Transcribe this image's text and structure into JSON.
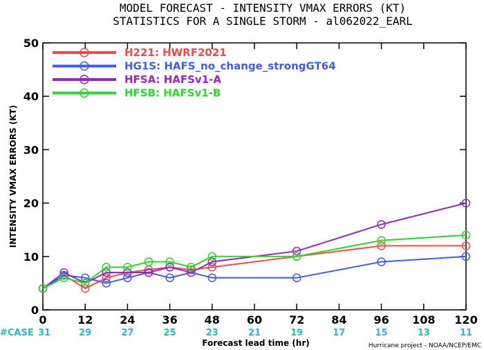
{
  "title_line1": "MODEL FORECAST - INTENSITY VMAX ERRORS (KT)",
  "title_line2": "STATISTICS FOR A SINGLE STORM - al062022_EARL",
  "credit": "Hurricane project - NOAA/NCEP/EMC",
  "case_label": "#CASE",
  "colors": {
    "case": "#1fbfd0"
  },
  "chart_data": {
    "type": "line",
    "xlabel": "Forecast lead time (hr)",
    "ylabel": "INTENSITY VMAX ERRORS (KT)",
    "xlim": [
      0,
      120
    ],
    "ylim": [
      0,
      50
    ],
    "x_ticks": [
      0,
      12,
      24,
      36,
      48,
      60,
      72,
      84,
      96,
      108,
      120
    ],
    "y_ticks": [
      0,
      10,
      20,
      30,
      40,
      50
    ],
    "grid": false,
    "legend_position": "top-left",
    "x": [
      0,
      6,
      12,
      18,
      24,
      30,
      36,
      42,
      48,
      72,
      96,
      120
    ],
    "series": [
      {
        "name": "H221: HWRF2021",
        "color": "#ff4444",
        "values": [
          4,
          6.5,
          4,
          6,
          7,
          7.5,
          8,
          7.5,
          8,
          10,
          12,
          12
        ]
      },
      {
        "name": "HG1S: HAFS_no_change_strongGT64",
        "color": "#3b5bff",
        "values": [
          4,
          6.5,
          6,
          5,
          6,
          7,
          6,
          7,
          6,
          6,
          9,
          10
        ]
      },
      {
        "name": "HFSA: HAFSv1-A",
        "color": "#a020d0",
        "values": [
          4,
          7,
          5,
          7,
          7,
          7,
          8,
          7,
          9,
          11,
          16,
          20
        ]
      },
      {
        "name": "HFSB: HAFSv1-B",
        "color": "#22dd22",
        "values": [
          4,
          6,
          5,
          8,
          8,
          9,
          9,
          8,
          10,
          10,
          13,
          14
        ]
      }
    ],
    "cases": [
      {
        "x": 0,
        "n": "31"
      },
      {
        "x": 12,
        "n": "29"
      },
      {
        "x": 24,
        "n": "27"
      },
      {
        "x": 36,
        "n": "25"
      },
      {
        "x": 48,
        "n": "23"
      },
      {
        "x": 60,
        "n": "21"
      },
      {
        "x": 72,
        "n": "19"
      },
      {
        "x": 84,
        "n": "17"
      },
      {
        "x": 96,
        "n": "15"
      },
      {
        "x": 108,
        "n": "13"
      },
      {
        "x": 120,
        "n": "11"
      }
    ]
  }
}
